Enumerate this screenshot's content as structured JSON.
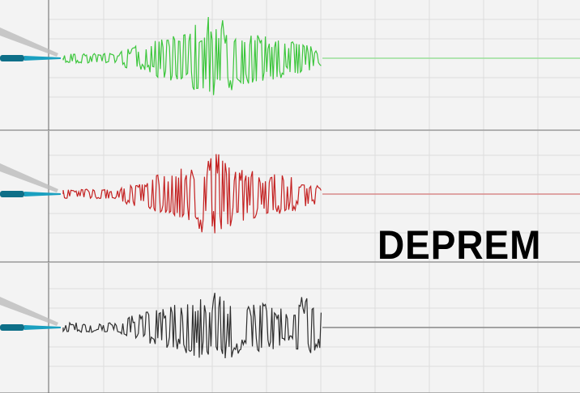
{
  "title": "DEPREM",
  "traces": [
    {
      "color": "#3cc63c",
      "baseline_color": "#9adf9a"
    },
    {
      "color": "#c42222",
      "baseline_color": "#d88a8a"
    },
    {
      "color": "#2e2e2e",
      "baseline_color": "#888888"
    }
  ],
  "colors": {
    "background": "#f3f3f3",
    "grid": "#dcdcdc",
    "panel_border": "#9a9a9a",
    "stylus": "#1aa0c0"
  }
}
